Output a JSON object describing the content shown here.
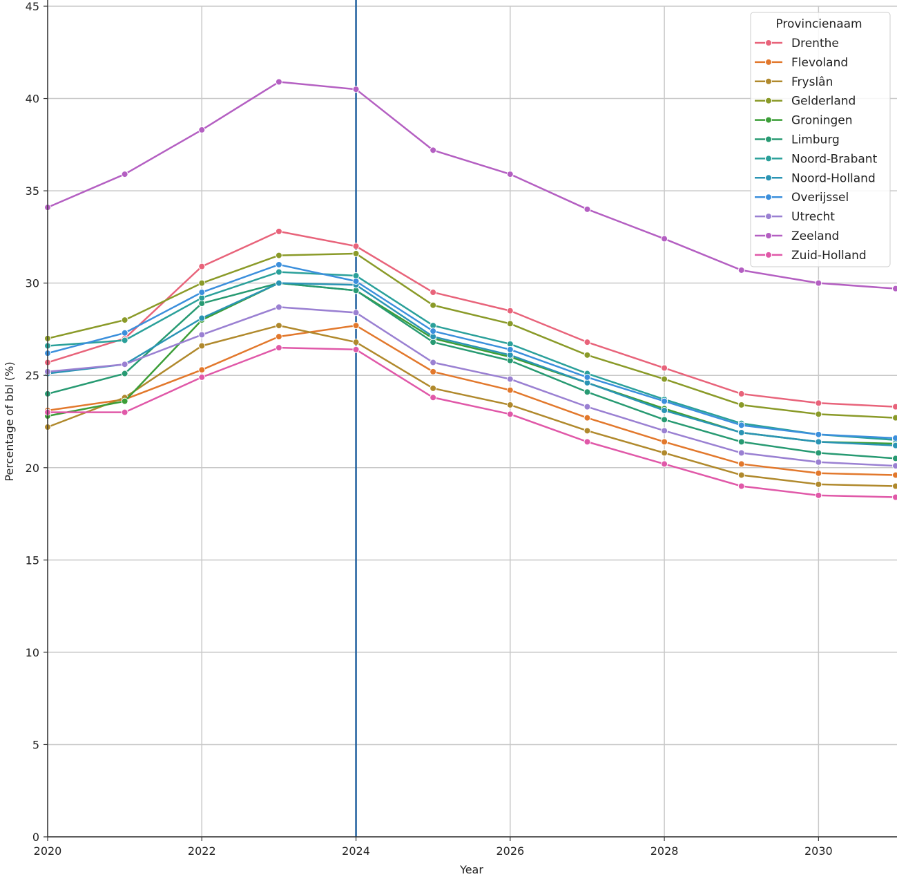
{
  "chart_data": {
    "type": "line",
    "title": "",
    "xlabel": "Year",
    "ylabel": "Percentage of bbl (%)",
    "xlim": [
      2020,
      2031
    ],
    "ylim": [
      0,
      45
    ],
    "grid": true,
    "x_ticks": [
      "2020",
      "2022",
      "2024",
      "2026",
      "2028",
      "2030"
    ],
    "x_tick_values": [
      2020,
      2022,
      2024,
      2026,
      2028,
      2030
    ],
    "y_ticks": [
      "0",
      "5",
      "10",
      "15",
      "20",
      "25",
      "30",
      "35",
      "40",
      "45"
    ],
    "y_tick_values": [
      0,
      5,
      10,
      15,
      20,
      25,
      30,
      35,
      40,
      45
    ],
    "vertical_line_x": 2024,
    "vertical_line_color": "#1f5f9e",
    "legend_title": "Provincienaam",
    "legend_placement": "top-right",
    "x": [
      2020,
      2021,
      2022,
      2023,
      2024,
      2025,
      2026,
      2027,
      2028,
      2029,
      2030,
      2031
    ],
    "series": [
      {
        "name": "Drenthe",
        "color": "#e8637a",
        "values": [
          25.7,
          27.0,
          30.9,
          32.8,
          32.0,
          29.5,
          28.5,
          26.8,
          25.4,
          24.0,
          23.5,
          23.3
        ]
      },
      {
        "name": "Flevoland",
        "color": "#e2782c",
        "values": [
          23.1,
          23.7,
          25.3,
          27.1,
          27.7,
          25.2,
          24.2,
          22.7,
          21.4,
          20.2,
          19.7,
          19.6
        ]
      },
      {
        "name": "Fryslân",
        "color": "#b0892c",
        "values": [
          22.2,
          23.8,
          26.6,
          27.7,
          26.8,
          24.3,
          23.4,
          22.0,
          20.8,
          19.6,
          19.1,
          19.0
        ]
      },
      {
        "name": "Gelderland",
        "color": "#8a9a28",
        "values": [
          27.0,
          28.0,
          30.0,
          31.5,
          31.6,
          28.8,
          27.8,
          26.1,
          24.8,
          23.4,
          22.9,
          22.7
        ]
      },
      {
        "name": "Groningen",
        "color": "#3c9e38",
        "values": [
          22.8,
          23.6,
          28.0,
          30.0,
          29.6,
          27.0,
          26.0,
          24.6,
          23.2,
          21.9,
          21.4,
          21.3
        ]
      },
      {
        "name": "Limburg",
        "color": "#279a72",
        "values": [
          24.0,
          25.1,
          28.9,
          30.0,
          29.6,
          26.8,
          25.8,
          24.1,
          22.6,
          21.4,
          20.8,
          20.5
        ]
      },
      {
        "name": "Noord-Brabant",
        "color": "#2aa09a",
        "values": [
          26.6,
          26.9,
          29.2,
          30.6,
          30.4,
          27.7,
          26.7,
          25.1,
          23.7,
          22.4,
          21.8,
          21.5
        ]
      },
      {
        "name": "Noord-Holland",
        "color": "#2a94b4",
        "values": [
          25.1,
          25.6,
          28.1,
          30.0,
          29.9,
          27.1,
          26.1,
          24.6,
          23.1,
          21.9,
          21.4,
          21.2
        ]
      },
      {
        "name": "Overijssel",
        "color": "#3b8fdc",
        "values": [
          26.2,
          27.3,
          29.5,
          31.0,
          30.1,
          27.4,
          26.4,
          24.9,
          23.6,
          22.3,
          21.8,
          21.6
        ]
      },
      {
        "name": "Utrecht",
        "color": "#9a80d2",
        "values": [
          25.2,
          25.6,
          27.2,
          28.7,
          28.4,
          25.7,
          24.8,
          23.3,
          22.0,
          20.8,
          20.3,
          20.1
        ]
      },
      {
        "name": "Zeeland",
        "color": "#b45fc2",
        "values": [
          34.1,
          35.9,
          38.3,
          40.9,
          40.5,
          37.2,
          35.9,
          34.0,
          32.4,
          30.7,
          30.0,
          29.7
        ]
      },
      {
        "name": "Zuid-Holland",
        "color": "#e058a8",
        "values": [
          23.0,
          23.0,
          24.9,
          26.5,
          26.4,
          23.8,
          22.9,
          21.4,
          20.2,
          19.0,
          18.5,
          18.4
        ]
      }
    ]
  }
}
